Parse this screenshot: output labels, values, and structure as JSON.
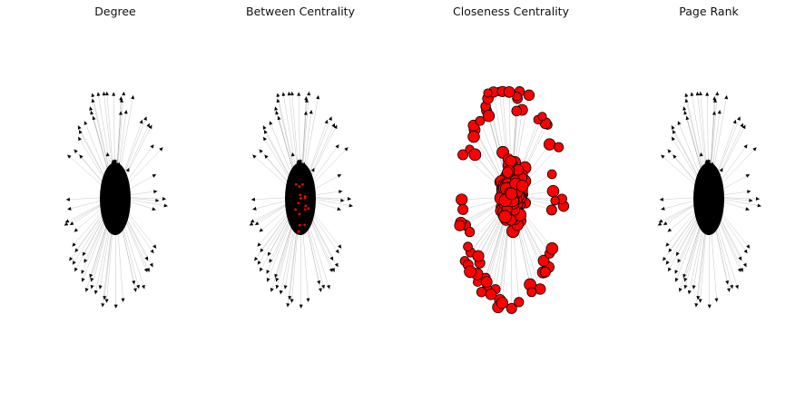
{
  "figure": {
    "panels": [
      {
        "id": "degree",
        "title": "Degree",
        "node_style": "tiny",
        "node_color": "#000000",
        "accent_count": 0
      },
      {
        "id": "between",
        "title": "Between Centrality",
        "node_style": "tiny",
        "node_color": "#000000",
        "accent_count": 16
      },
      {
        "id": "closeness",
        "title": "Closeness Centrality",
        "node_style": "big-circle",
        "node_color": "#ff0000"
      },
      {
        "id": "pagerank",
        "title": "Page Rank",
        "node_style": "tiny",
        "node_color": "#000000",
        "accent_count": 0
      }
    ],
    "colors": {
      "edge": "#999999",
      "arrow": "#000000",
      "core": "#000000",
      "accent": "#ff0000",
      "circle_fill": "#ff0000",
      "circle_stroke": "#000000"
    }
  }
}
